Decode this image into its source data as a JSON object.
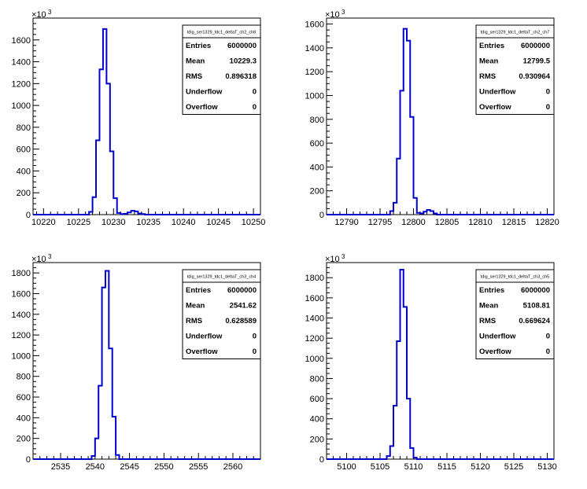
{
  "chart_data": [
    {
      "type": "histogram",
      "stats": {
        "title": "tdig_ser1329_tdc1_deltaT_ch2_ch8",
        "rows": [
          {
            "label": "Entries",
            "value": "6000000"
          },
          {
            "label": "Mean",
            "value": "10229.3"
          },
          {
            "label": "RMS",
            "value": "0.896318"
          },
          {
            "label": "Underflow",
            "value": "0"
          },
          {
            "label": "Overflow",
            "value": "0"
          }
        ]
      },
      "y_multiplier": "×10",
      "y_multiplier_exp": "3",
      "xlim": [
        10218.5,
        10251
      ],
      "ylim": [
        0,
        1800
      ],
      "xticks": [
        10220,
        10225,
        10230,
        10235,
        10240,
        10245,
        10250
      ],
      "yticks": [
        0,
        200,
        400,
        600,
        800,
        1000,
        1200,
        1400,
        1600
      ],
      "bin_edges": [
        10226.5,
        10227,
        10227.5,
        10228,
        10228.5,
        10229,
        10229.5,
        10230,
        10230.5,
        10231,
        10231.5,
        10232,
        10232.5,
        10233,
        10233.5,
        10234,
        10234.5
      ],
      "values": [
        25,
        160,
        680,
        1330,
        1700,
        1200,
        580,
        150,
        15,
        5,
        8,
        20,
        35,
        30,
        10,
        5
      ]
    },
    {
      "type": "histogram",
      "stats": {
        "title": "tdig_ser1329_tdc1_deltaT_ch2_ch7",
        "rows": [
          {
            "label": "Entries",
            "value": "6000000"
          },
          {
            "label": "Mean",
            "value": "12799.5"
          },
          {
            "label": "RMS",
            "value": "0.930964"
          },
          {
            "label": "Underflow",
            "value": "0"
          },
          {
            "label": "Overflow",
            "value": "0"
          }
        ]
      },
      "y_multiplier": "×10",
      "y_multiplier_exp": "3",
      "xlim": [
        12787,
        12821
      ],
      "ylim": [
        0,
        1650
      ],
      "xticks": [
        12790,
        12795,
        12800,
        12805,
        12810,
        12815,
        12820
      ],
      "yticks": [
        0,
        200,
        400,
        600,
        800,
        1000,
        1200,
        1400,
        1600
      ],
      "bin_edges": [
        12796.5,
        12797,
        12797.5,
        12798,
        12798.5,
        12799,
        12799.5,
        12800,
        12800.5,
        12801,
        12801.5,
        12802,
        12802.5,
        12803,
        12803.5
      ],
      "values": [
        30,
        100,
        470,
        1040,
        1560,
        1460,
        820,
        140,
        15,
        10,
        25,
        40,
        30,
        10
      ]
    },
    {
      "type": "histogram",
      "stats": {
        "title": "tdig_ser1329_tdc1_deltaT_ch3_ch4",
        "rows": [
          {
            "label": "Entries",
            "value": "6000000"
          },
          {
            "label": "Mean",
            "value": "2541.62"
          },
          {
            "label": "RMS",
            "value": "0.628589"
          },
          {
            "label": "Underflow",
            "value": "0"
          },
          {
            "label": "Overflow",
            "value": "0"
          }
        ]
      },
      "y_multiplier": "×10",
      "y_multiplier_exp": "3",
      "xlim": [
        2531,
        2564
      ],
      "ylim": [
        0,
        1900
      ],
      "xticks": [
        2535,
        2540,
        2545,
        2550,
        2555,
        2560
      ],
      "yticks": [
        0,
        200,
        400,
        600,
        800,
        1000,
        1200,
        1400,
        1600,
        1800
      ],
      "bin_edges": [
        2539.5,
        2540,
        2540.5,
        2541,
        2541.5,
        2542,
        2542.5,
        2543,
        2543.5
      ],
      "values": [
        30,
        200,
        710,
        1660,
        1820,
        1070,
        410,
        40
      ]
    },
    {
      "type": "histogram",
      "stats": {
        "title": "tdig_ser1329_tdc1_deltaT_ch3_ch5",
        "rows": [
          {
            "label": "Entries",
            "value": "6000000"
          },
          {
            "label": "Mean",
            "value": "5108.81"
          },
          {
            "label": "RMS",
            "value": "0.669624"
          },
          {
            "label": "Underflow",
            "value": "0"
          },
          {
            "label": "Overflow",
            "value": "0"
          }
        ]
      },
      "y_multiplier": "×10",
      "y_multiplier_exp": "3",
      "xlim": [
        5097,
        5131
      ],
      "ylim": [
        0,
        1950
      ],
      "xticks": [
        5100,
        5105,
        5110,
        5115,
        5120,
        5125,
        5130
      ],
      "yticks": [
        0,
        200,
        400,
        600,
        800,
        1000,
        1200,
        1400,
        1600,
        1800
      ],
      "bin_edges": [
        5106,
        5106.5,
        5107,
        5107.5,
        5108,
        5108.5,
        5109,
        5109.5,
        5110,
        5110.5
      ],
      "values": [
        30,
        130,
        530,
        1170,
        1880,
        1510,
        600,
        110,
        15
      ]
    }
  ],
  "colors": {
    "histogram_line": "#0000cc",
    "axis": "#000000",
    "background": "#ffffff"
  }
}
